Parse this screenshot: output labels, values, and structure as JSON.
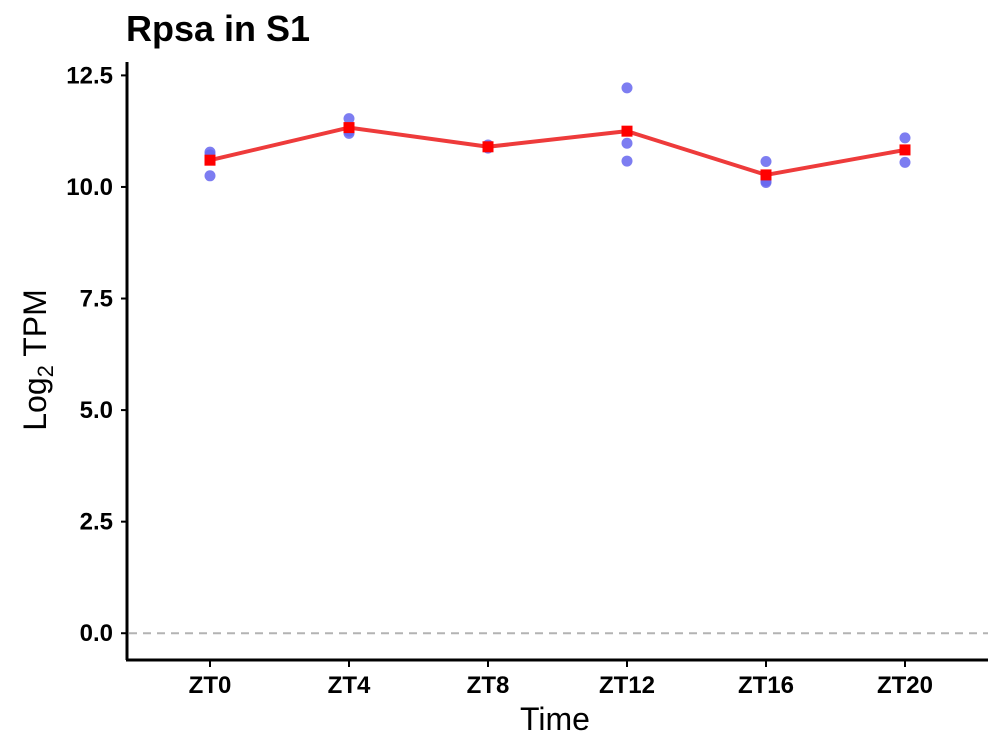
{
  "chart_data": {
    "type": "line",
    "title": "Rpsa in S1",
    "xlabel": "Time",
    "ylabel_main": "Log",
    "ylabel_sub": "2",
    "ylabel_tail": " TPM",
    "categories": [
      "ZT0",
      "ZT4",
      "ZT8",
      "ZT12",
      "ZT16",
      "ZT20"
    ],
    "yticks": [
      "0.0",
      "2.5",
      "5.0",
      "7.5",
      "10.0",
      "12.5"
    ],
    "ytick_values": [
      0,
      2.5,
      5.0,
      7.5,
      10.0,
      12.5
    ],
    "ylim": [
      -0.6,
      12.8
    ],
    "reference_line": 0,
    "grid": false,
    "colors": {
      "mean": "#ee3b3b",
      "mean_point": "#ff0000",
      "replicate": "#6666ee",
      "reference": "#b3b3b3"
    },
    "series": [
      {
        "values": [
          10.6,
          11.33,
          10.9,
          11.25,
          10.27,
          10.83
        ]
      },
      {
        "points": [
          {
            "x": "ZT0",
            "y": 10.78
          },
          {
            "x": "ZT0",
            "y": 10.72
          },
          {
            "x": "ZT0",
            "y": 10.25
          },
          {
            "x": "ZT4",
            "y": 11.53
          },
          {
            "x": "ZT4",
            "y": 11.25
          },
          {
            "x": "ZT4",
            "y": 11.2
          },
          {
            "x": "ZT8",
            "y": 10.94
          },
          {
            "x": "ZT8",
            "y": 10.9
          },
          {
            "x": "ZT8",
            "y": 10.87
          },
          {
            "x": "ZT12",
            "y": 12.22
          },
          {
            "x": "ZT12",
            "y": 10.98
          },
          {
            "x": "ZT12",
            "y": 10.58
          },
          {
            "x": "ZT16",
            "y": 10.57
          },
          {
            "x": "ZT16",
            "y": 10.13
          },
          {
            "x": "ZT16",
            "y": 10.1
          },
          {
            "x": "ZT20",
            "y": 11.1
          },
          {
            "x": "ZT20",
            "y": 10.55
          }
        ]
      }
    ]
  }
}
